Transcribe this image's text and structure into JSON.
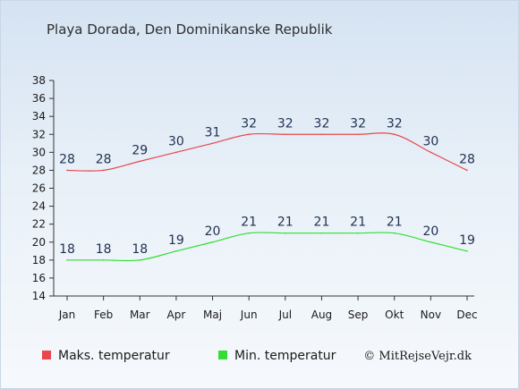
{
  "chart_data": {
    "type": "line",
    "title": "Playa Dorada, Den Dominikanske Republik",
    "categories": [
      "Jan",
      "Feb",
      "Mar",
      "Apr",
      "Maj",
      "Jun",
      "Jul",
      "Aug",
      "Sep",
      "Okt",
      "Nov",
      "Dec"
    ],
    "ylim": [
      14,
      38
    ],
    "yticks": [
      "14",
      "16",
      "18",
      "20",
      "22",
      "24",
      "26",
      "28",
      "30",
      "32",
      "34",
      "36",
      "38"
    ],
    "grid": false,
    "legend_position": "bottom",
    "series": [
      {
        "name": "Maks. temperatur",
        "color": "#e8474d",
        "values": [
          28,
          28,
          29,
          30,
          31,
          32,
          32,
          32,
          32,
          32,
          30,
          28
        ],
        "labels": [
          "28",
          "28",
          "29",
          "30",
          "31",
          "32",
          "32",
          "32",
          "32",
          "32",
          "30",
          "28"
        ]
      },
      {
        "name": "Min. temperatur",
        "color": "#33dd33",
        "values": [
          18,
          18,
          18,
          19,
          20,
          21,
          21,
          21,
          21,
          21,
          20,
          19
        ],
        "labels": [
          "18",
          "18",
          "18",
          "19",
          "20",
          "21",
          "21",
          "21",
          "21",
          "21",
          "20",
          "19"
        ]
      }
    ],
    "copyright": "© MitRejseVejr.dk"
  }
}
